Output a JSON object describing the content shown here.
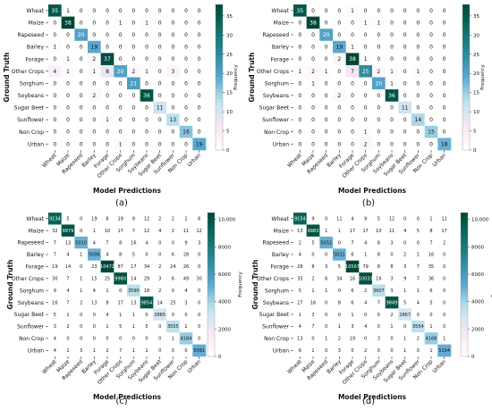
{
  "figure": {
    "panels": [
      "(a)",
      "(b)",
      "(c)",
      "(d)"
    ]
  },
  "colors": {
    "scale": [
      "#ffffff",
      "#f9e6f3",
      "#bfe3ef",
      "#5aa7cf",
      "#2a8a9b",
      "#0b6e62",
      "#004636"
    ],
    "text_dark": "#111111",
    "text_light": "#ffffff"
  },
  "chart_data": [
    {
      "type": "heatmap",
      "panel_label": "(a)",
      "title": "",
      "xlabel": "Model Predictions",
      "ylabel": "Ground Truth",
      "colorbar_label": "Frequency",
      "colorbar_ticks": [
        0,
        5,
        10,
        15,
        20,
        25,
        30,
        35
      ],
      "vmax": 38,
      "rows": [
        "Wheat",
        "Maize",
        "Rapeseed",
        "Barley",
        "Forage",
        "Other Crops",
        "Sorghum",
        "Soybeans",
        "Sugar Beet",
        "Sunflower",
        "Non Crop",
        "Urban"
      ],
      "cols": [
        "Wheat",
        "Maize",
        "Rapeseed",
        "Barley",
        "Forage",
        "Other Crops",
        "Sorghum",
        "Soybeans",
        "Sugar Beet",
        "Sunflower",
        "Non Crop",
        "Urban"
      ],
      "matrix": [
        [
          35,
          1,
          0,
          0,
          0,
          0,
          0,
          0,
          0,
          0,
          0,
          0
        ],
        [
          0,
          38,
          0,
          0,
          0,
          1,
          0,
          1,
          0,
          0,
          0,
          0
        ],
        [
          0,
          0,
          20,
          0,
          0,
          0,
          0,
          0,
          0,
          0,
          0,
          0
        ],
        [
          1,
          0,
          0,
          19,
          0,
          0,
          0,
          0,
          0,
          0,
          0,
          0
        ],
        [
          0,
          1,
          0,
          2,
          37,
          0,
          0,
          0,
          0,
          0,
          0,
          0
        ],
        [
          4,
          1,
          0,
          1,
          8,
          20,
          2,
          1,
          0,
          3,
          0,
          0
        ],
        [
          0,
          0,
          0,
          0,
          0,
          0,
          21,
          0,
          0,
          0,
          0,
          0
        ],
        [
          0,
          0,
          0,
          2,
          0,
          0,
          0,
          36,
          0,
          0,
          0,
          0
        ],
        [
          0,
          0,
          0,
          0,
          0,
          0,
          0,
          0,
          11,
          0,
          0,
          0
        ],
        [
          0,
          0,
          0,
          0,
          1,
          0,
          0,
          0,
          0,
          13,
          0,
          0
        ],
        [
          0,
          0,
          0,
          0,
          0,
          0,
          0,
          0,
          0,
          0,
          16,
          0
        ],
        [
          0,
          0,
          0,
          0,
          0,
          1,
          0,
          0,
          0,
          0,
          0,
          19
        ]
      ]
    },
    {
      "type": "heatmap",
      "panel_label": "(b)",
      "title": "",
      "xlabel": "Model Predictions",
      "ylabel": "Ground Truth",
      "colorbar_label": "Frequency",
      "colorbar_ticks": [
        0,
        5,
        10,
        15,
        20,
        25,
        30,
        35
      ],
      "vmax": 38,
      "rows": [
        "Wheat",
        "Maize",
        "Rapeseed",
        "Barley",
        "Forage",
        "Other Crops",
        "Sorghum",
        "Soybeans",
        "Sugar Beet",
        "Sunflower",
        "Non Crop",
        "Urban"
      ],
      "cols": [
        "Wheat",
        "Maize",
        "Rapeseed",
        "Barley",
        "Forage",
        "Other Crops",
        "Sorghum",
        "Soybeans",
        "Sugar Beet",
        "Sunflower",
        "Non Crop",
        "Urban"
      ],
      "matrix": [
        [
          35,
          0,
          0,
          0,
          1,
          0,
          0,
          0,
          0,
          0,
          0,
          0
        ],
        [
          0,
          38,
          0,
          0,
          0,
          1,
          1,
          0,
          0,
          0,
          0,
          0
        ],
        [
          0,
          0,
          20,
          0,
          0,
          0,
          0,
          0,
          0,
          0,
          0,
          0
        ],
        [
          0,
          0,
          0,
          19,
          1,
          0,
          0,
          0,
          0,
          0,
          0,
          0
        ],
        [
          0,
          0,
          0,
          2,
          38,
          1,
          0,
          0,
          0,
          0,
          0,
          0
        ],
        [
          1,
          2,
          1,
          0,
          7,
          25,
          2,
          1,
          0,
          1,
          0,
          0
        ],
        [
          0,
          1,
          0,
          0,
          0,
          0,
          20,
          1,
          0,
          0,
          0,
          0
        ],
        [
          0,
          0,
          0,
          2,
          0,
          0,
          0,
          36,
          0,
          0,
          0,
          0
        ],
        [
          0,
          0,
          0,
          0,
          0,
          0,
          0,
          0,
          11,
          0,
          0,
          0
        ],
        [
          0,
          0,
          0,
          0,
          0,
          0,
          0,
          0,
          0,
          14,
          0,
          0
        ],
        [
          0,
          0,
          0,
          0,
          0,
          1,
          0,
          0,
          0,
          0,
          15,
          0
        ],
        [
          0,
          0,
          0,
          0,
          0,
          2,
          0,
          0,
          0,
          0,
          0,
          18
        ]
      ]
    },
    {
      "type": "heatmap",
      "panel_label": "(c)",
      "title": "",
      "xlabel": "Model Predictions",
      "ylabel": "Ground Truth",
      "colorbar_label": "Frequency",
      "colorbar_ticks": [
        0,
        2000,
        4000,
        6000,
        8000,
        10000
      ],
      "colorbar_tick_labels": [
        "0",
        "2000",
        "4000",
        "6000",
        "8000",
        "10,000"
      ],
      "vmax": 10500,
      "rows": [
        "Wheat",
        "Maize",
        "Rapeseed",
        "Barley",
        "Forage",
        "Other Crops",
        "Sorghum",
        "Soybeans",
        "Sugar Beet",
        "Sunflower",
        "Non Crop",
        "Urban"
      ],
      "cols": [
        "Wheat",
        "Maize",
        "Rapeseed",
        "Barley",
        "Forage",
        "Other Crops",
        "Sorghum",
        "Soybeans",
        "Sugar Beet",
        "Sunflower",
        "Non Crop",
        "Urban"
      ],
      "matrix": [
        [
          9134,
          5,
          0,
          19,
          6,
          19,
          9,
          12,
          2,
          2,
          2,
          6
        ],
        [
          32,
          9979,
          0,
          1,
          10,
          17,
          7,
          12,
          4,
          2,
          11,
          12
        ],
        [
          7,
          13,
          5010,
          4,
          7,
          8,
          16,
          4,
          0,
          0,
          9,
          3
        ],
        [
          7,
          4,
          1,
          5006,
          4,
          8,
          5,
          0,
          0,
          6,
          28,
          0
        ],
        [
          19,
          14,
          0,
          23,
          10472,
          87,
          17,
          34,
          2,
          24,
          26,
          0
        ],
        [
          30,
          7,
          1,
          15,
          25,
          9980,
          14,
          29,
          3,
          6,
          49,
          30
        ],
        [
          9,
          4,
          1,
          4,
          1,
          0,
          3590,
          18,
          2,
          0,
          4,
          0
        ],
        [
          16,
          7,
          2,
          13,
          8,
          17,
          13,
          9854,
          14,
          25,
          3,
          0
        ],
        [
          5,
          1,
          0,
          0,
          4,
          1,
          1,
          0,
          2865,
          0,
          0,
          0
        ],
        [
          3,
          2,
          0,
          0,
          1,
          5,
          1,
          5,
          0,
          3555,
          1,
          0
        ],
        [
          4,
          0,
          0,
          0,
          0,
          0,
          0,
          0,
          0,
          1,
          4184,
          0
        ],
        [
          4,
          1,
          3,
          1,
          2,
          7,
          1,
          1,
          0,
          0,
          0,
          5091
        ]
      ]
    },
    {
      "type": "heatmap",
      "panel_label": "(d)",
      "title": "",
      "xlabel": "Model Predictions",
      "ylabel": "Ground Truth",
      "colorbar_label": "Frequency",
      "colorbar_ticks": [
        0,
        2000,
        4000,
        6000,
        8000,
        10000
      ],
      "colorbar_tick_labels": [
        "0",
        "2000",
        "4000",
        "6000",
        "8000",
        "10,000"
      ],
      "vmax": 10500,
      "rows": [
        "Wheat",
        "Maize",
        "Rapeseed",
        "Barley",
        "Forage",
        "Other Crops",
        "Sorghum",
        "Soybeans",
        "Sugar Beet",
        "Sunflower",
        "Non Crop",
        "Urban"
      ],
      "cols": [
        "Wheat",
        "Maize",
        "Rapeseed",
        "Barley",
        "Forage",
        "Other Crops",
        "Sorghum",
        "Soybeans",
        "Sugar Beet",
        "Sunflower",
        "Non Crop",
        "Urban"
      ],
      "matrix": [
        [
          9154,
          9,
          0,
          11,
          4,
          9,
          5,
          12,
          0,
          0,
          1,
          11
        ],
        [
          13,
          9983,
          1,
          1,
          17,
          17,
          10,
          11,
          4,
          5,
          8,
          17
        ],
        [
          2,
          5,
          5032,
          0,
          7,
          4,
          8,
          3,
          0,
          0,
          7,
          2
        ],
        [
          4,
          0,
          0,
          5021,
          6,
          1,
          8,
          0,
          2,
          1,
          16,
          0
        ],
        [
          28,
          8,
          3,
          5,
          10567,
          79,
          8,
          8,
          3,
          7,
          35,
          0
        ],
        [
          35,
          2,
          6,
          34,
          16,
          10033,
          16,
          3,
          9,
          7,
          36,
          0
        ],
        [
          5,
          1,
          1,
          0,
          6,
          2,
          3607,
          3,
          1,
          1,
          6,
          0
        ],
        [
          27,
          16,
          0,
          8,
          6,
          4,
          7,
          9849,
          5,
          4,
          5,
          0
        ],
        [
          1,
          3,
          0,
          0,
          1,
          0,
          0,
          2,
          2867,
          0,
          0,
          0
        ],
        [
          4,
          7,
          0,
          1,
          3,
          4,
          0,
          1,
          0,
          3554,
          1,
          0
        ],
        [
          13,
          0,
          1,
          2,
          19,
          0,
          3,
          0,
          1,
          2,
          4168,
          1
        ],
        [
          6,
          1,
          0,
          3,
          0,
          2,
          0,
          0,
          1,
          0,
          1,
          5104
        ]
      ]
    }
  ]
}
